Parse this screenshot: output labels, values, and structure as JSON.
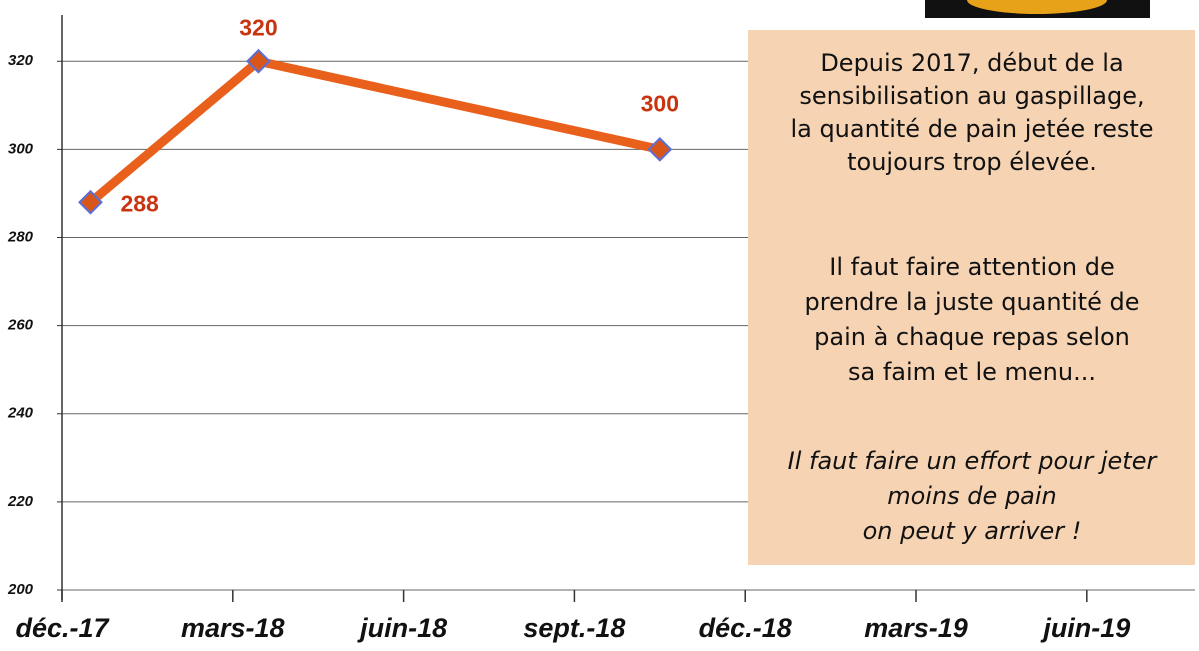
{
  "chart_data": {
    "type": "line",
    "x": [
      0.5,
      3.45,
      10.5
    ],
    "values": [
      288,
      320,
      300
    ],
    "color": "#e8601c",
    "marker_edge_color": "#5b6fd6",
    "xlim": [
      0,
      19.9
    ],
    "xticks": [
      {
        "value": 0,
        "label": "déc.-17"
      },
      {
        "value": 3,
        "label": "mars-18"
      },
      {
        "value": 6,
        "label": "juin-18"
      },
      {
        "value": 9,
        "label": "sept.-18"
      },
      {
        "value": 12,
        "label": "déc.-18"
      },
      {
        "value": 15,
        "label": "mars-19"
      },
      {
        "value": 18,
        "label": "juin-19"
      }
    ],
    "ylim": [
      200,
      330.5
    ],
    "yticks": [
      200,
      220,
      240,
      260,
      280,
      300,
      320
    ],
    "grid": true,
    "annotation_lines": [
      "Depuis 2017, début de la",
      "sensibilisation au gaspillage,",
      "la quantité de pain jetée reste",
      "toujours trop élevée.",
      "Il faut faire attention de",
      "prendre la juste quantité de",
      "pain à chaque repas selon",
      "sa faim et le menu...",
      "Il faut faire un  effort  pour jeter",
      "moins de pain",
      "on peut y arriver !"
    ]
  }
}
